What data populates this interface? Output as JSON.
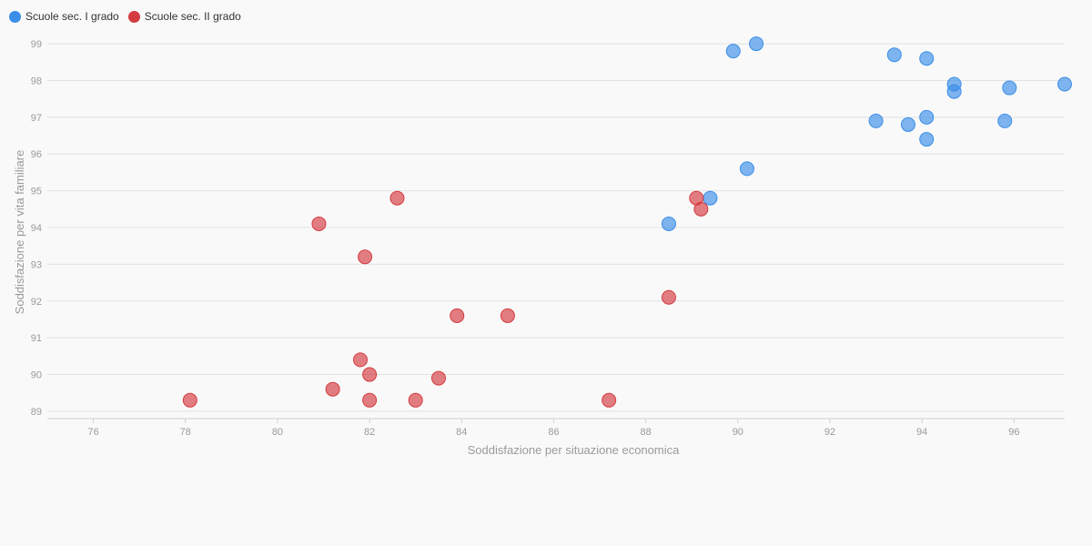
{
  "legend": {
    "items": [
      {
        "label": "Scuole sec. I grado",
        "color": "#3b8ee8"
      },
      {
        "label": "Scuole sec. II grado",
        "color": "#d43b40"
      }
    ]
  },
  "chart_data": {
    "type": "scatter",
    "title": "",
    "xlabel": "Soddisfazione per situazione economica",
    "ylabel": "Soddisfazione per vita familiare",
    "xlim": [
      75,
      97.1
    ],
    "ylim": [
      88.8,
      99.2
    ],
    "xticks": [
      76,
      78,
      80,
      82,
      84,
      86,
      88,
      90,
      92,
      94,
      96
    ],
    "yticks": [
      89,
      90,
      91,
      92,
      93,
      94,
      95,
      96,
      97,
      98,
      99
    ],
    "grid": "horizontal",
    "legend_position": "top-left",
    "series": [
      {
        "name": "Scuole sec. I grado",
        "color": "#3b8ee8",
        "points": [
          {
            "x": 89.9,
            "y": 98.8
          },
          {
            "x": 90.4,
            "y": 99.0
          },
          {
            "x": 93.4,
            "y": 98.7
          },
          {
            "x": 94.1,
            "y": 98.6
          },
          {
            "x": 94.7,
            "y": 97.9
          },
          {
            "x": 94.7,
            "y": 97.7
          },
          {
            "x": 95.9,
            "y": 97.8
          },
          {
            "x": 97.1,
            "y": 97.9
          },
          {
            "x": 93.0,
            "y": 96.9
          },
          {
            "x": 93.7,
            "y": 96.8
          },
          {
            "x": 94.1,
            "y": 97.0
          },
          {
            "x": 94.1,
            "y": 96.4
          },
          {
            "x": 95.8,
            "y": 96.9
          },
          {
            "x": 90.2,
            "y": 95.6
          },
          {
            "x": 89.4,
            "y": 94.8
          },
          {
            "x": 88.5,
            "y": 94.1
          }
        ]
      },
      {
        "name": "Scuole sec. II grado",
        "color": "#d43b40",
        "points": [
          {
            "x": 82.6,
            "y": 94.8
          },
          {
            "x": 80.9,
            "y": 94.1
          },
          {
            "x": 81.9,
            "y": 93.2
          },
          {
            "x": 83.9,
            "y": 91.6
          },
          {
            "x": 85.0,
            "y": 91.6
          },
          {
            "x": 88.5,
            "y": 92.1
          },
          {
            "x": 89.1,
            "y": 94.8
          },
          {
            "x": 89.2,
            "y": 94.5
          },
          {
            "x": 81.8,
            "y": 90.4
          },
          {
            "x": 82.0,
            "y": 90.0
          },
          {
            "x": 81.2,
            "y": 89.6
          },
          {
            "x": 83.5,
            "y": 89.9
          },
          {
            "x": 78.1,
            "y": 89.3
          },
          {
            "x": 82.0,
            "y": 89.3
          },
          {
            "x": 83.0,
            "y": 89.3
          },
          {
            "x": 87.2,
            "y": 89.3
          }
        ]
      }
    ]
  }
}
